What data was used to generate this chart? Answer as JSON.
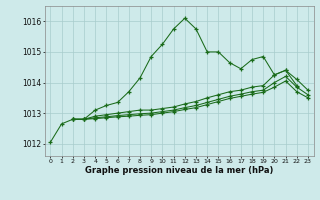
{
  "title": "Graphe pression niveau de la mer (hPa)",
  "background_color": "#ceeaea",
  "grid_color": "#a8cccc",
  "line_color": "#1a6b1a",
  "xlim": [
    -0.5,
    23.5
  ],
  "ylim": [
    1011.6,
    1016.5
  ],
  "yticks": [
    1012,
    1013,
    1014,
    1015,
    1016
  ],
  "xticks": [
    0,
    1,
    2,
    3,
    4,
    5,
    6,
    7,
    8,
    9,
    10,
    11,
    12,
    13,
    14,
    15,
    16,
    17,
    18,
    19,
    20,
    21,
    22,
    23
  ],
  "s1_x": [
    0,
    1,
    2,
    3,
    4,
    5,
    6,
    7,
    8,
    9,
    10,
    11,
    12,
    13,
    14,
    15,
    16,
    17,
    18,
    19,
    20,
    21,
    22
  ],
  "s1_y": [
    1012.05,
    1012.65,
    1012.8,
    1012.8,
    1013.1,
    1013.25,
    1013.35,
    1013.7,
    1014.15,
    1014.85,
    1015.25,
    1015.75,
    1016.1,
    1015.75,
    1015.0,
    1015.0,
    1014.65,
    1014.45,
    1014.75,
    1014.85,
    1014.25,
    1014.4,
    1013.9
  ],
  "s2_x": [
    2,
    3,
    4,
    5,
    6,
    7,
    8,
    9,
    10,
    11,
    12,
    13,
    14,
    15,
    16,
    17,
    18,
    19,
    20,
    21,
    22,
    23
  ],
  "s2_y": [
    1012.8,
    1012.8,
    1012.9,
    1012.95,
    1013.0,
    1013.05,
    1013.1,
    1013.1,
    1013.15,
    1013.2,
    1013.3,
    1013.38,
    1013.5,
    1013.6,
    1013.7,
    1013.75,
    1013.85,
    1013.9,
    1014.25,
    1014.4,
    1014.1,
    1013.75
  ],
  "s3_x": [
    2,
    3,
    4,
    5,
    6,
    7,
    8,
    9,
    10,
    11,
    12,
    13,
    14,
    15,
    16,
    17,
    18,
    19,
    20,
    21,
    22,
    23
  ],
  "s3_y": [
    1012.8,
    1012.8,
    1012.85,
    1012.88,
    1012.92,
    1012.95,
    1012.98,
    1013.0,
    1013.05,
    1013.1,
    1013.18,
    1013.25,
    1013.35,
    1013.45,
    1013.55,
    1013.62,
    1013.7,
    1013.75,
    1014.0,
    1014.2,
    1013.85,
    1013.6
  ],
  "s4_x": [
    2,
    3,
    4,
    5,
    6,
    7,
    8,
    9,
    10,
    11,
    12,
    13,
    14,
    15,
    16,
    17,
    18,
    19,
    20,
    21,
    22,
    23
  ],
  "s4_y": [
    1012.8,
    1012.8,
    1012.82,
    1012.85,
    1012.88,
    1012.9,
    1012.93,
    1012.95,
    1013.0,
    1013.05,
    1013.12,
    1013.18,
    1013.28,
    1013.38,
    1013.48,
    1013.55,
    1013.62,
    1013.68,
    1013.85,
    1014.05,
    1013.7,
    1013.5
  ]
}
